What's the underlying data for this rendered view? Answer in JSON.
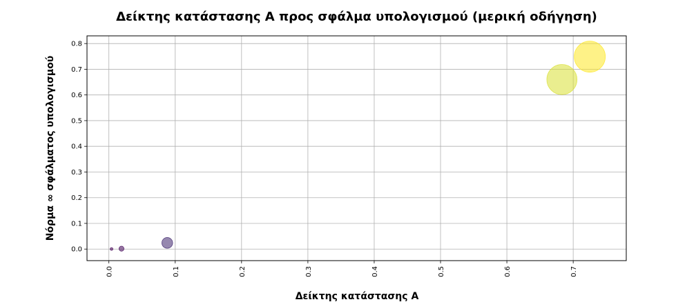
{
  "chart_data": {
    "type": "scatter",
    "title": "Δείκτης κατάστασης A προς σφάλμα υπολογισμού (μερική οδήγηση)",
    "xlabel": "Δείκτης κατάστασης A",
    "ylabel": "Νόρμα ∞ σφάλματος υπολογισμού",
    "xlim": [
      -0.033,
      0.78
    ],
    "ylim": [
      -0.045,
      0.83
    ],
    "x_ticks": [
      0.0,
      0.1,
      0.2,
      0.3,
      0.4,
      0.5,
      0.6,
      0.7
    ],
    "y_ticks": [
      0.0,
      0.1,
      0.2,
      0.3,
      0.4,
      0.5,
      0.6,
      0.7,
      0.8
    ],
    "x_tick_labels": [
      "0.0",
      "0.1",
      "0.2",
      "0.3",
      "0.4",
      "0.5",
      "0.6",
      "0.7"
    ],
    "y_tick_labels": [
      "0.0",
      "0.1",
      "0.2",
      "0.3",
      "0.4",
      "0.5",
      "0.6",
      "0.7",
      "0.8"
    ],
    "grid": true,
    "colormap": "viridis",
    "points": [
      {
        "x": 0.004,
        "y": 0.0003,
        "size": 0.004
      },
      {
        "x": 0.019,
        "y": 0.0015,
        "size": 0.019
      },
      {
        "x": 0.088,
        "y": 0.024,
        "size": 0.088
      },
      {
        "x": 0.683,
        "y": 0.66,
        "size": 0.683
      },
      {
        "x": 0.725,
        "y": 0.749,
        "size": 0.725
      }
    ]
  }
}
